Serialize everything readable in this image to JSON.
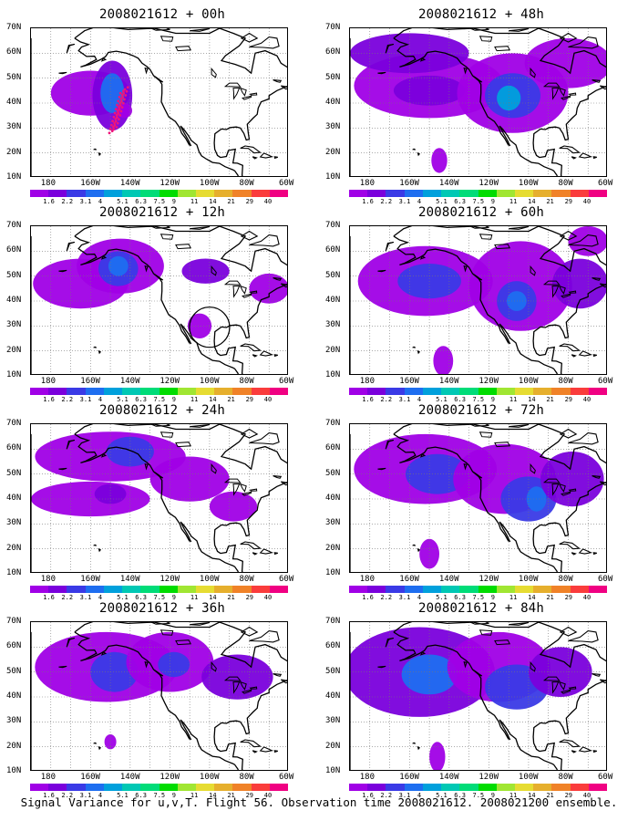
{
  "panels": [
    {
      "title": "2008021612 + 00h"
    },
    {
      "title": "2008021612 + 48h"
    },
    {
      "title": "2008021612 + 12h"
    },
    {
      "title": "2008021612 + 60h"
    },
    {
      "title": "2008021612 + 24h"
    },
    {
      "title": "2008021612 + 72h"
    },
    {
      "title": "2008021612 + 36h"
    },
    {
      "title": "2008021612 + 84h"
    }
  ],
  "lat_labels": [
    "70N",
    "60N",
    "50N",
    "40N",
    "30N",
    "20N",
    "10N"
  ],
  "lon_labels": [
    "180",
    "160W",
    "140W",
    "120W",
    "100W",
    "80W",
    "60W"
  ],
  "colorbar": {
    "labels": [
      "1.6",
      "2.2",
      "3.1",
      "4",
      "5.1",
      "6.3",
      "7.5",
      "9",
      "11",
      "14",
      "21",
      "29",
      "40"
    ],
    "colors": [
      "#a000e6",
      "#7a00dc",
      "#3a3ae6",
      "#1e6ef0",
      "#00a0dc",
      "#00c8b4",
      "#00dc78",
      "#00dc00",
      "#a0e632",
      "#e6dc32",
      "#e6af2d",
      "#f08228",
      "#fa3c3c",
      "#f00082"
    ]
  },
  "caption": "Signal Variance for u,v,T. Flight 56. Observation time 2008021612. 2008021200 ensemble."
}
